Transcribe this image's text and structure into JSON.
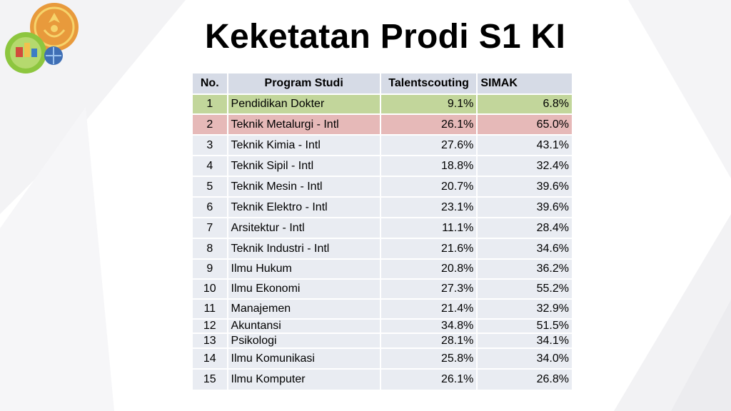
{
  "title": "Keketatan Prodi S1 KI",
  "colors": {
    "header_bg": "#d6dbe6",
    "row_bg": "#e9ecf2",
    "highlight_green": "#c2d69b",
    "highlight_red": "#e6b9b8"
  },
  "logos": [
    "university-seal-icon",
    "faculty-badge-icon",
    "globe-badge-icon"
  ],
  "table": {
    "headers": {
      "no": "No.",
      "program": "Program Studi",
      "talent": "Talentscouting",
      "simak": "SIMAK"
    },
    "rows": [
      {
        "no": "1",
        "program": "Pendidikan Dokter",
        "talent": "9.1%",
        "simak": "6.8%"
      },
      {
        "no": "2",
        "program": "Teknik Metalurgi - Intl",
        "talent": "26.1%",
        "simak": "65.0%"
      },
      {
        "no": "3",
        "program": "Teknik Kimia - Intl",
        "talent": "27.6%",
        "simak": "43.1%"
      },
      {
        "no": "4",
        "program": "Teknik Sipil - Intl",
        "talent": "18.8%",
        "simak": "32.4%"
      },
      {
        "no": "5",
        "program": "Teknik Mesin - Intl",
        "talent": "20.7%",
        "simak": "39.6%"
      },
      {
        "no": "6",
        "program": "Teknik Elektro - Intl",
        "talent": "23.1%",
        "simak": "39.6%"
      },
      {
        "no": "7",
        "program": "Arsitektur - Intl",
        "talent": "11.1%",
        "simak": "28.4%"
      },
      {
        "no": "8",
        "program": "Teknik Industri - Intl",
        "talent": "21.6%",
        "simak": "34.6%"
      },
      {
        "no": "9",
        "program": "Ilmu Hukum",
        "talent": "20.8%",
        "simak": "36.2%"
      },
      {
        "no": "10",
        "program": "Ilmu Ekonomi",
        "talent": "27.3%",
        "simak": "55.2%"
      },
      {
        "no": "11",
        "program": "Manajemen",
        "talent": "21.4%",
        "simak": "32.9%"
      },
      {
        "no": "12",
        "program": "Akuntansi",
        "talent": "34.8%",
        "simak": "51.5%"
      },
      {
        "no": "13",
        "program": "Psikologi",
        "talent": "28.1%",
        "simak": "34.1%"
      },
      {
        "no": "14",
        "program": "Ilmu Komunikasi",
        "talent": "25.8%",
        "simak": "34.0%"
      },
      {
        "no": "15",
        "program": "Ilmu Komputer",
        "talent": "26.1%",
        "simak": "26.8%"
      }
    ]
  }
}
